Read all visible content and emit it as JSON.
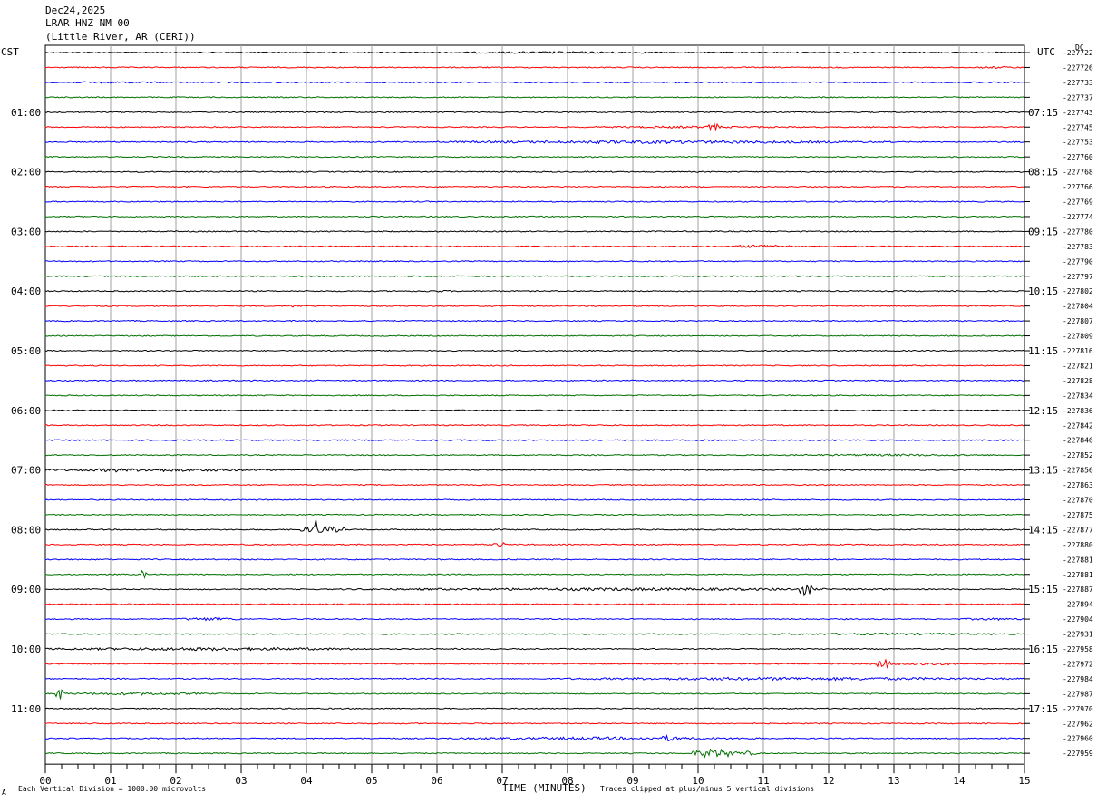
{
  "header": {
    "line1": "Dec24,2025",
    "line2": "LRAR HNZ NM 00",
    "line3": "(Little River, AR (CERI))"
  },
  "left_tz": "CST",
  "right_tz": "UTC",
  "dc_label": "DC",
  "footer_left": "Each Vertical Division = 1000.00 microvolts",
  "footer_right": "Traces clipped at plus/minus 5 vertical divisions",
  "corner_mark": "A",
  "colors": {
    "black": "#000000",
    "red": "#ff0000",
    "blue": "#0000ff",
    "green": "#007000",
    "grid": "#a0a0a0"
  },
  "chart_data": {
    "type": "line",
    "xlabel": "TIME (MINUTES)",
    "xlim": [
      0,
      15
    ],
    "x_ticks": [
      "00",
      "01",
      "02",
      "03",
      "04",
      "05",
      "06",
      "07",
      "08",
      "09",
      "10",
      "11",
      "12",
      "13",
      "14",
      "15"
    ],
    "cst_labels": [
      "01:00",
      "02:00",
      "03:00",
      "04:00",
      "05:00",
      "06:00",
      "07:00",
      "08:00",
      "09:00",
      "10:00",
      "11:00"
    ],
    "utc_labels": [
      "07:15",
      "08:15",
      "09:15",
      "10:15",
      "11:15",
      "12:15",
      "13:15",
      "14:15",
      "15:15",
      "16:15",
      "17:15"
    ],
    "dc_offsets": [
      "-227722",
      "-227726",
      "-227733",
      "-227737",
      "-227743",
      "-227745",
      "-227753",
      "-227760",
      "-227768",
      "-227766",
      "-227769",
      "-227774",
      "-227780",
      "-227783",
      "-227790",
      "-227797",
      "-227802",
      "-227804",
      "-227807",
      "-227809",
      "-227816",
      "-227821",
      "-227828",
      "-227834",
      "-227836",
      "-227842",
      "-227846",
      "-227852",
      "-227856",
      "-227863",
      "-227870",
      "-227875",
      "-227877",
      "-227880",
      "-227881",
      "-227881",
      "-227887",
      "-227894",
      "-227904",
      "-227931",
      "-227958",
      "-227972",
      "-227984",
      "-227987",
      "-227970",
      "-227962",
      "-227960",
      "-227959"
    ],
    "trace_colors": [
      "black",
      "red",
      "blue",
      "green"
    ],
    "events": [
      {
        "trace": 0,
        "start_min": 6.0,
        "end_min": 9.5,
        "amp": 1.2
      },
      {
        "trace": 1,
        "start_min": 14.2,
        "end_min": 15.0,
        "amp": 1.2
      },
      {
        "trace": 2,
        "start_min": 0.0,
        "end_min": 2.0,
        "amp": 1.0
      },
      {
        "trace": 5,
        "start_min": 8.0,
        "end_min": 12.0,
        "amp": 1.2
      },
      {
        "trace": 5,
        "start_min": 10.15,
        "end_min": 10.35,
        "amp": 4.5
      },
      {
        "trace": 6,
        "start_min": 6.0,
        "end_min": 13.0,
        "amp": 1.8
      },
      {
        "trace": 13,
        "start_min": 10.5,
        "end_min": 11.5,
        "amp": 2.0
      },
      {
        "trace": 16,
        "start_min": 5.5,
        "end_min": 6.5,
        "amp": 1.0
      },
      {
        "trace": 17,
        "start_min": 3.7,
        "end_min": 3.95,
        "amp": 1.8
      },
      {
        "trace": 27,
        "start_min": 11.0,
        "end_min": 15.0,
        "amp": 1.2
      },
      {
        "trace": 28,
        "start_min": 0.0,
        "end_min": 3.5,
        "amp": 1.8
      },
      {
        "trace": 28,
        "start_min": 0.8,
        "end_min": 1.3,
        "amp": 2.5
      },
      {
        "trace": 32,
        "start_min": 4.1,
        "end_min": 4.2,
        "amp": 14
      },
      {
        "trace": 32,
        "start_min": 3.9,
        "end_min": 4.6,
        "amp": 4
      },
      {
        "trace": 33,
        "start_min": 6.85,
        "end_min": 7.05,
        "amp": 3.5
      },
      {
        "trace": 35,
        "start_min": 1.45,
        "end_min": 1.55,
        "amp": 6
      },
      {
        "trace": 36,
        "start_min": 4.5,
        "end_min": 13.0,
        "amp": 1.6
      },
      {
        "trace": 36,
        "start_min": 11.55,
        "end_min": 11.75,
        "amp": 8
      },
      {
        "trace": 38,
        "start_min": 2.0,
        "end_min": 3.0,
        "amp": 1.8
      },
      {
        "trace": 38,
        "start_min": 14.0,
        "end_min": 15.0,
        "amp": 1.4
      },
      {
        "trace": 39,
        "start_min": 11.0,
        "end_min": 15.0,
        "amp": 1.2
      },
      {
        "trace": 40,
        "start_min": 0.0,
        "end_min": 5.0,
        "amp": 1.8
      },
      {
        "trace": 41,
        "start_min": 12.75,
        "end_min": 12.95,
        "amp": 6
      },
      {
        "trace": 41,
        "start_min": 12.95,
        "end_min": 14.0,
        "amp": 1.8
      },
      {
        "trace": 42,
        "start_min": 8.0,
        "end_min": 15.0,
        "amp": 1.8
      },
      {
        "trace": 43,
        "start_min": 0.15,
        "end_min": 0.3,
        "amp": 7
      },
      {
        "trace": 43,
        "start_min": 0.3,
        "end_min": 2.5,
        "amp": 1.6
      },
      {
        "trace": 46,
        "start_min": 6.0,
        "end_min": 11.0,
        "amp": 1.6
      },
      {
        "trace": 46,
        "start_min": 9.4,
        "end_min": 9.7,
        "amp": 3.5
      },
      {
        "trace": 47,
        "start_min": 9.9,
        "end_min": 10.6,
        "amp": 5
      },
      {
        "trace": 47,
        "start_min": 10.6,
        "end_min": 10.9,
        "amp": 2.5
      }
    ]
  }
}
